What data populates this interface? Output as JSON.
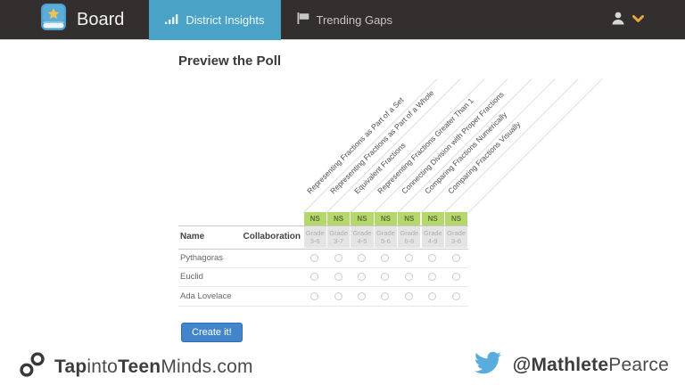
{
  "colors": {
    "navbar": "#342f2f",
    "active_tab": "#4aa3c7",
    "strand_green": "#b5d86d",
    "button_blue": "#4285cb",
    "twitter_blue": "#59acde",
    "caret_gold": "#e2a93c"
  },
  "nav": {
    "brand": "Board",
    "tabs": [
      {
        "label": "District Insights",
        "icon": "bar-chart-icon",
        "active": true
      },
      {
        "label": "Trending Gaps",
        "icon": "flag-icon",
        "active": false
      }
    ],
    "user_menu_icons": [
      "user-icon",
      "chevron-down-icon"
    ]
  },
  "page": {
    "title": "Preview the Poll"
  },
  "poll_table": {
    "headers": {
      "name": "Name",
      "collaboration": "Collaboration"
    },
    "columns": [
      {
        "topic": "Representing Fractions as Part of a Set",
        "strand": "NS",
        "grade_label": "Grade",
        "grade_range": "3-6"
      },
      {
        "topic": "Representing Fractions as Part of a Whole",
        "strand": "NS",
        "grade_label": "Grade",
        "grade_range": "3-7"
      },
      {
        "topic": "Equivalent Fractions",
        "strand": "NS",
        "grade_label": "Grade",
        "grade_range": "4-5"
      },
      {
        "topic": "Representing Fractions Greater Than 1",
        "strand": "NS",
        "grade_label": "Grade",
        "grade_range": "5-6"
      },
      {
        "topic": "Connecting Division with Proper Fractions",
        "strand": "NS",
        "grade_label": "Grade",
        "grade_range": "6-8"
      },
      {
        "topic": "Comparing Fractions Numerically",
        "strand": "NS",
        "grade_label": "Grade",
        "grade_range": "4-9"
      },
      {
        "topic": "Comparing Fractions Visually",
        "strand": "NS",
        "grade_label": "Grade",
        "grade_range": "3-6"
      }
    ],
    "rows": [
      {
        "name": "Pythagoras"
      },
      {
        "name": "Euclid"
      },
      {
        "name": "Ada Lovelace"
      }
    ]
  },
  "create_button": "Create it!",
  "footer": {
    "site": {
      "icon": "link-icon",
      "parts": [
        {
          "text": "Tap",
          "bold": true
        },
        {
          "text": "into",
          "bold": false
        },
        {
          "text": "Teen",
          "bold": true
        },
        {
          "text": "Minds.com",
          "bold": false
        }
      ]
    },
    "twitter": {
      "icon": "twitter-icon",
      "handle_parts": [
        {
          "text": "@Mathlete",
          "bold": true
        },
        {
          "text": "Pearce",
          "bold": false
        }
      ]
    }
  }
}
